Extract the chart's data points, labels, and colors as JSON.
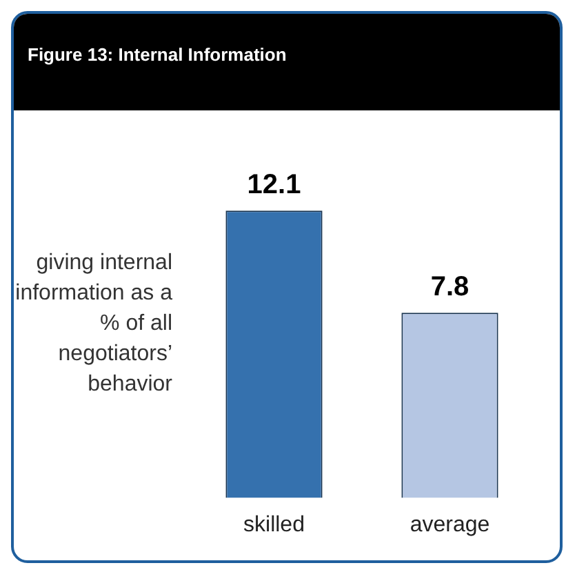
{
  "chart_data": {
    "type": "bar",
    "title": "Figure 13: Internal Information",
    "ylabel": "giving internal information as a % of all negotiators’ behavior",
    "categories": [
      "skilled",
      "average"
    ],
    "values": [
      12.1,
      7.8
    ],
    "colors": [
      "#3571ae",
      "#b5c6e3"
    ],
    "data_labels": true,
    "grid": false,
    "legend": false
  }
}
